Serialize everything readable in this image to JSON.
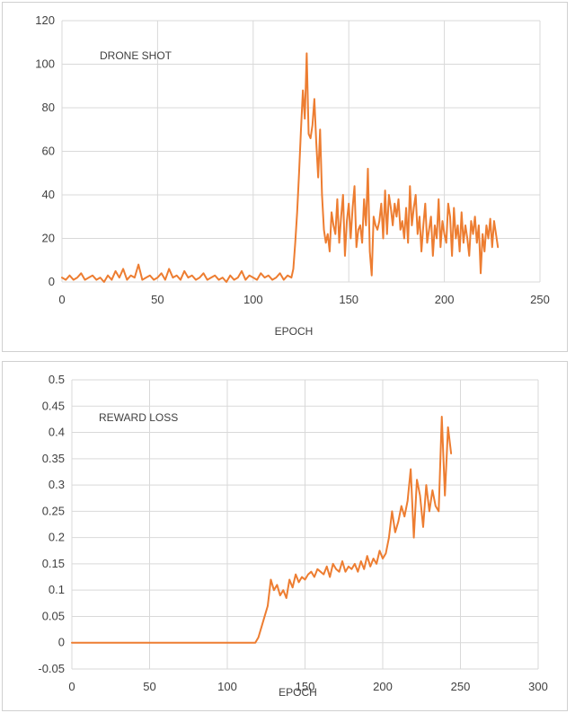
{
  "colors": {
    "series": "#ED7D31",
    "grid": "#D9D9D9",
    "text": "#404040"
  },
  "chart_data": [
    {
      "type": "line",
      "title": "DRONE SHOT",
      "xlabel": "EPOCH",
      "ylabel": "",
      "xlim": [
        0,
        250
      ],
      "ylim": [
        0,
        120
      ],
      "xticks": [
        0,
        50,
        100,
        150,
        200,
        250
      ],
      "yticks": [
        0,
        20,
        40,
        60,
        80,
        100,
        120
      ],
      "grid": true,
      "legend": "none",
      "series": [
        {
          "x": [
            0,
            2,
            4,
            6,
            8,
            10,
            12,
            14,
            16,
            18,
            20,
            22,
            24,
            26,
            28,
            30,
            32,
            34,
            36,
            38,
            40,
            42,
            44,
            46,
            48,
            50,
            52,
            54,
            56,
            58,
            60,
            62,
            64,
            66,
            68,
            70,
            72,
            74,
            76,
            78,
            80,
            82,
            84,
            86,
            88,
            90,
            92,
            94,
            96,
            98,
            100,
            102,
            104,
            106,
            108,
            110,
            112,
            114,
            116,
            118,
            120,
            121,
            122,
            123,
            124,
            125,
            126,
            127,
            128,
            129,
            130,
            131,
            132,
            133,
            134,
            135,
            136,
            137,
            138,
            139,
            140,
            141,
            142,
            143,
            144,
            145,
            146,
            147,
            148,
            149,
            150,
            151,
            152,
            153,
            154,
            155,
            156,
            157,
            158,
            159,
            160,
            161,
            162,
            163,
            164,
            165,
            166,
            167,
            168,
            169,
            170,
            171,
            172,
            173,
            174,
            175,
            176,
            177,
            178,
            179,
            180,
            181,
            182,
            183,
            184,
            185,
            186,
            187,
            188,
            189,
            190,
            191,
            192,
            193,
            194,
            195,
            196,
            197,
            198,
            199,
            200,
            201,
            202,
            203,
            204,
            205,
            206,
            207,
            208,
            209,
            210,
            211,
            212,
            213,
            214,
            215,
            216,
            217,
            218,
            219,
            220,
            221,
            222,
            223,
            224,
            225,
            226,
            227,
            228
          ],
          "values": [
            2,
            1,
            3,
            1,
            2,
            4,
            1,
            2,
            3,
            1,
            2,
            0,
            3,
            1,
            5,
            2,
            6,
            1,
            3,
            2,
            8,
            1,
            2,
            3,
            1,
            2,
            4,
            1,
            6,
            2,
            3,
            1,
            5,
            2,
            3,
            1,
            2,
            4,
            1,
            2,
            3,
            1,
            2,
            0,
            3,
            1,
            2,
            5,
            1,
            3,
            2,
            1,
            4,
            2,
            3,
            1,
            2,
            4,
            1,
            3,
            2,
            6,
            18,
            32,
            50,
            70,
            88,
            75,
            105,
            68,
            66,
            72,
            84,
            64,
            48,
            70,
            40,
            24,
            18,
            22,
            14,
            32,
            26,
            22,
            38,
            18,
            30,
            40,
            12,
            28,
            36,
            20,
            34,
            44,
            16,
            24,
            26,
            18,
            38,
            26,
            52,
            14,
            3,
            30,
            26,
            24,
            28,
            36,
            20,
            42,
            22,
            40,
            34,
            26,
            36,
            30,
            38,
            24,
            28,
            20,
            34,
            18,
            44,
            26,
            34,
            40,
            22,
            30,
            14,
            26,
            36,
            18,
            24,
            30,
            12,
            26,
            20,
            38,
            16,
            28,
            22,
            18,
            36,
            30,
            12,
            34,
            20,
            26,
            14,
            32,
            18,
            26,
            20,
            12,
            28,
            22,
            30,
            18,
            26,
            4,
            22,
            14,
            26,
            20,
            29,
            16,
            28,
            22,
            16
          ],
          "color": "#ED7D31"
        }
      ]
    },
    {
      "type": "line",
      "title": "REWARD LOSS",
      "xlabel": "EPOCH",
      "ylabel": "",
      "xlim": [
        0,
        300
      ],
      "ylim": [
        -0.05,
        0.5
      ],
      "xticks": [
        0,
        50,
        100,
        150,
        200,
        250,
        300
      ],
      "yticks": [
        -0.05,
        0,
        0.05,
        0.1,
        0.15,
        0.2,
        0.25,
        0.3,
        0.35,
        0.4,
        0.45,
        0.5
      ],
      "ytick_labels": [
        "-0.05",
        "0",
        "0.05",
        "0.1",
        "0.15",
        "0.2",
        "0.25",
        "0.3",
        "0.35",
        "0.4",
        "0.45",
        "0.5"
      ],
      "grid": true,
      "legend": "none",
      "series": [
        {
          "x": [
            0,
            20,
            40,
            60,
            80,
            100,
            118,
            120,
            122,
            124,
            126,
            128,
            130,
            132,
            134,
            136,
            138,
            140,
            142,
            144,
            146,
            148,
            150,
            152,
            154,
            156,
            158,
            160,
            162,
            164,
            166,
            168,
            170,
            172,
            174,
            176,
            178,
            180,
            182,
            184,
            186,
            188,
            190,
            192,
            194,
            196,
            198,
            200,
            202,
            204,
            206,
            208,
            210,
            212,
            214,
            216,
            218,
            220,
            222,
            224,
            226,
            228,
            230,
            232,
            234,
            236,
            238,
            240,
            242,
            244
          ],
          "values": [
            0,
            0,
            0,
            0,
            0,
            0,
            0,
            0.01,
            0.03,
            0.05,
            0.07,
            0.12,
            0.1,
            0.11,
            0.09,
            0.1,
            0.085,
            0.12,
            0.105,
            0.13,
            0.115,
            0.125,
            0.12,
            0.13,
            0.135,
            0.125,
            0.14,
            0.135,
            0.13,
            0.145,
            0.125,
            0.15,
            0.14,
            0.135,
            0.155,
            0.135,
            0.145,
            0.14,
            0.15,
            0.135,
            0.155,
            0.14,
            0.165,
            0.145,
            0.16,
            0.15,
            0.175,
            0.16,
            0.17,
            0.2,
            0.25,
            0.21,
            0.23,
            0.26,
            0.24,
            0.27,
            0.33,
            0.2,
            0.31,
            0.28,
            0.22,
            0.3,
            0.25,
            0.29,
            0.26,
            0.25,
            0.43,
            0.28,
            0.41,
            0.36
          ],
          "color": "#ED7D31"
        }
      ]
    }
  ]
}
